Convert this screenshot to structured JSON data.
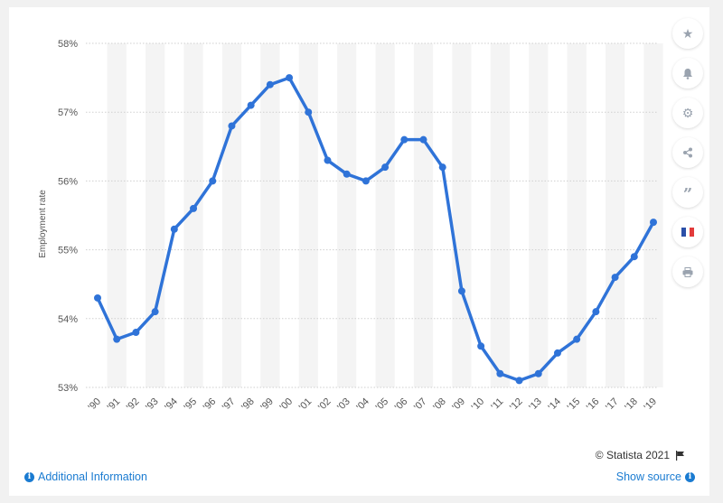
{
  "chart_data": {
    "type": "line",
    "ylabel": "Employment rate",
    "ylim": [
      53,
      58
    ],
    "yticks": [
      53,
      54,
      55,
      56,
      57,
      58
    ],
    "ytick_labels": [
      "53%",
      "54%",
      "55%",
      "56%",
      "57%",
      "58%"
    ],
    "categories": [
      "'90",
      "'91",
      "'92",
      "'93",
      "'94",
      "'95",
      "'96",
      "'97",
      "'98",
      "'99",
      "'00",
      "'01",
      "'02",
      "'03",
      "'04",
      "'05",
      "'06",
      "'07",
      "'08",
      "'09",
      "'10",
      "'11",
      "'12",
      "'13",
      "'14",
      "'15",
      "'16",
      "'17",
      "'18",
      "'19"
    ],
    "series": [
      {
        "values": [
          54.3,
          53.7,
          53.8,
          54.1,
          55.3,
          55.6,
          56.0,
          56.8,
          57.1,
          57.4,
          57.5,
          57.0,
          56.3,
          56.1,
          56.0,
          56.2,
          56.6,
          56.6,
          56.2,
          54.4,
          53.6,
          53.2,
          53.1,
          53.2,
          53.5,
          53.7,
          54.1,
          54.6,
          54.9,
          55.4
        ]
      }
    ],
    "grid": true,
    "line_color": "#2f73d8"
  },
  "footer": {
    "credit": "© Statista 2021",
    "additional_info": "Additional Information",
    "show_source": "Show source"
  },
  "toolbar": {
    "icons": [
      "star-icon",
      "bell-icon",
      "gear-icon",
      "share-icon",
      "quote-icon",
      "french-flag-icon",
      "print-icon"
    ],
    "flag_colors": [
      "#2b50a8",
      "#ffffff",
      "#e23b3b"
    ]
  }
}
